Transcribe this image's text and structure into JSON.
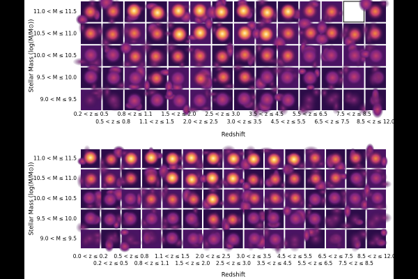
{
  "panels": [
    {
      "row_labels": [
        "11.0 < M ≤ 11.5",
        "10.5 < M ≤ 11.0",
        "10.0 < M ≤ 10.5",
        "9.5 < M ≤ 10.0",
        "9.0 < M ≤ 9.5"
      ],
      "col_labels": [
        "0.2 < z ≤ 0.5",
        "0.5 < z ≤ 0.8",
        "0.8 < z ≤ 1.1",
        "1.1 < z ≤ 1.5",
        "1.5 < z ≤ 2.0",
        "2.0 < z ≤ 2.5",
        "2.5 < z ≤ 3.0",
        "3.0 < z ≤ 3.5",
        "3.5 < z ≤ 4.5",
        "4.5 < z ≤ 5.5",
        "5.5 < z ≤ 6.5",
        "6.5 < z ≤ 7.5",
        "7.5 < z ≤ 8.5",
        "8.5 < z ≤ 12.0"
      ],
      "xlabel": "Redshift",
      "ylabel": "Stellar Mass (log(M/M⊙))"
    },
    {
      "row_labels": [
        "11.0 < M ≤ 11.5",
        "10.5 < M ≤ 11.0",
        "10.0 < M ≤ 10.5",
        "9.5 < M ≤ 10.0",
        "9.0 < M ≤ 9.5"
      ],
      "col_labels": [
        "0.0 < z ≤ 0.2",
        "0.2 < z ≤ 0.5",
        "0.5 < z ≤ 0.8",
        "0.8 < z ≤ 1.1",
        "1.1 < z ≤ 1.5",
        "1.5 < z ≤ 2.0",
        "2.0 < z ≤ 2.5",
        "2.5 < z ≤ 3.0",
        "3.0 < z ≤ 3.5",
        "3.5 < z ≤ 4.5",
        "4.5 < z ≤ 5.5",
        "5.5 < z ≤ 6.5",
        "6.5 < z ≤ 7.5",
        "7.5 < z ≤ 8.5",
        "8.5 < z ≤ 12.0"
      ],
      "xlabel": "Redshift",
      "ylabel": "Stellar Mass (log(M/M⊙))"
    }
  ]
}
